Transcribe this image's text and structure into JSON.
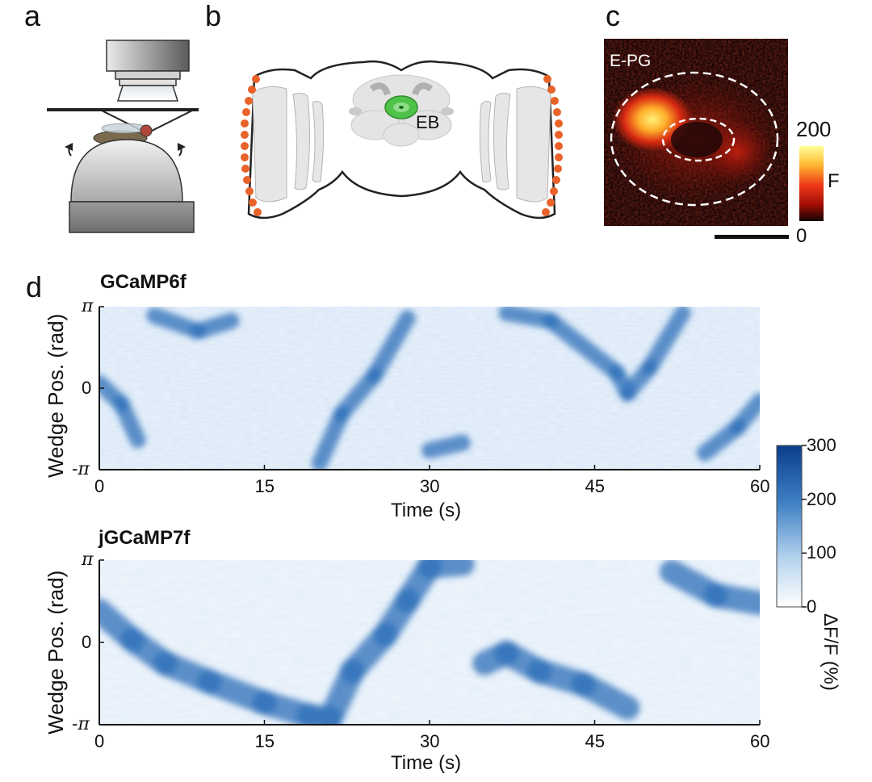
{
  "panels": {
    "a": "a",
    "b": "b",
    "c": "c",
    "d": "d"
  },
  "panel_b": {
    "eb_label": "EB"
  },
  "panel_c": {
    "label": "E-PG",
    "colorbar": {
      "max": "200",
      "min": "0",
      "label": "F"
    }
  },
  "colors": {
    "orange": "#e8622a",
    "blue_max": "#0b3d8c",
    "eb_green": "#4fc24a"
  },
  "chart_data": [
    {
      "type": "heatmap",
      "title": "GCaMP6f",
      "xlabel": "Time (s)",
      "ylabel": "Wedge Pos. (rad)",
      "x_ticks": [
        "0",
        "15",
        "30",
        "45",
        "60"
      ],
      "y_ticks": [
        "π",
        "0",
        "-π"
      ],
      "xlim": [
        0,
        60
      ],
      "ylim": [
        "-π",
        "π"
      ],
      "bump_track": [
        [
          0,
          0.2
        ],
        [
          2,
          -0.6
        ],
        [
          3.5,
          -2.0
        ],
        [
          5,
          2.8
        ],
        [
          9,
          2.2
        ],
        [
          12,
          2.6
        ],
        [
          20,
          -2.9
        ],
        [
          22,
          -1.0
        ],
        [
          25,
          0.5
        ],
        [
          28,
          2.7
        ],
        [
          30,
          -2.4
        ],
        [
          33,
          -2.1
        ],
        [
          37,
          2.9
        ],
        [
          41,
          2.6
        ],
        [
          47,
          0.6
        ],
        [
          48,
          -0.2
        ],
        [
          50,
          0.8
        ],
        [
          53,
          2.9
        ],
        [
          55,
          -2.5
        ],
        [
          58,
          -1.5
        ],
        [
          60,
          -0.5
        ]
      ]
    },
    {
      "type": "heatmap",
      "title": "jGCaMP7f",
      "xlabel": "Time (s)",
      "ylabel": "Wedge Pos. (rad)",
      "x_ticks": [
        "0",
        "15",
        "30",
        "45",
        "60"
      ],
      "y_ticks": [
        "π",
        "0",
        "-π"
      ],
      "xlim": [
        0,
        60
      ],
      "ylim": [
        "-π",
        "π"
      ],
      "bump_track": [
        [
          0,
          1.2
        ],
        [
          3,
          0.1
        ],
        [
          6,
          -0.8
        ],
        [
          10,
          -1.5
        ],
        [
          15,
          -2.3
        ],
        [
          19,
          -2.8
        ],
        [
          21,
          -2.9
        ],
        [
          23,
          -1.1
        ],
        [
          26,
          0.3
        ],
        [
          28,
          1.6
        ],
        [
          30,
          2.9
        ],
        [
          33,
          3.0
        ],
        [
          35,
          -0.8
        ],
        [
          37,
          -0.4
        ],
        [
          40,
          -1.1
        ],
        [
          44,
          -1.6
        ],
        [
          48,
          -2.5
        ],
        [
          52,
          2.7
        ],
        [
          56,
          1.8
        ],
        [
          60,
          1.5
        ]
      ]
    }
  ],
  "colorbar_d": {
    "ticks": [
      "300",
      "200",
      "100",
      "0"
    ],
    "label": "ΔF/F (%)",
    "range": [
      0,
      300
    ]
  }
}
